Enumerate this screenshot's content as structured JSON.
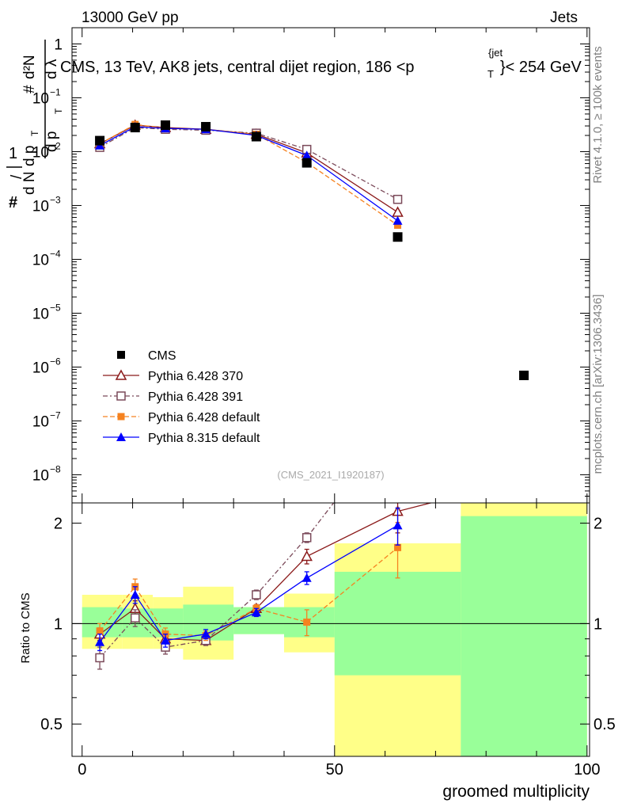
{
  "header": {
    "energy_label": "13000 GeV pp",
    "process_label": "Jets",
    "title": "CMS, 13 TeV, AK8 jets, central dijet region, 186 <p",
    "title_sup": "{jet",
    "title_sub": "T",
    "title_end": "}< 254 GeV",
    "right_label_top": "Rivet 4.1.0, ≥ 100k events",
    "right_label_bottom": "mcplots.cern.ch [arXiv:1306.3436]",
    "analysis_id": "(CMS_2021_I1920187)"
  },
  "colors": {
    "cms": "#000000",
    "p370": "#8b1a1a",
    "p391": "#7b4a5a",
    "p6def": "#f58220",
    "p8def": "#0000ff",
    "band_inner": "#99ff99",
    "band_outer": "#ffff88"
  },
  "chart_data": {
    "type": "line",
    "xlabel": "groomed multiplicity",
    "ylabel_main": "1/N dN/dp_T d²N/dp_T dλ",
    "ylabel_ratio": "Ratio to CMS",
    "xlim": [
      -2,
      100.5
    ],
    "ylim_main": [
      3e-09,
      2
    ],
    "ylim_ratio": [
      0.4,
      2.3
    ],
    "x_ticks": [
      0,
      50,
      100
    ],
    "main_ticks": [
      {
        "v": 1,
        "label": "1"
      },
      {
        "v": 0.1,
        "label": "10",
        "exp": "−1"
      },
      {
        "v": 0.01,
        "label": "10",
        "exp": "−2"
      },
      {
        "v": 0.001,
        "label": "10",
        "exp": "−3"
      },
      {
        "v": 0.0001,
        "label": "10",
        "exp": "−4"
      },
      {
        "v": 1e-05,
        "label": "10",
        "exp": "−5"
      },
      {
        "v": 1e-06,
        "label": "10",
        "exp": "−6"
      },
      {
        "v": 1e-07,
        "label": "10",
        "exp": "−7"
      },
      {
        "v": 1e-08,
        "label": "10",
        "exp": "−8"
      }
    ],
    "ratio_ticks": [
      {
        "v": 2,
        "label": "2"
      },
      {
        "v": 1,
        "label": "1"
      },
      {
        "v": 0.5,
        "label": "0.5"
      }
    ],
    "bins": [
      {
        "lo": 0,
        "hi": 8,
        "inner": [
          0.91,
          1.12
        ],
        "outer": [
          0.84,
          1.22
        ]
      },
      {
        "lo": 8,
        "hi": 14,
        "inner": [
          0.91,
          1.11
        ],
        "outer": [
          0.84,
          1.22
        ]
      },
      {
        "lo": 14,
        "hi": 20,
        "inner": [
          0.91,
          1.11
        ],
        "outer": [
          0.84,
          1.2
        ]
      },
      {
        "lo": 20,
        "hi": 30,
        "inner": [
          0.89,
          1.14
        ],
        "outer": [
          0.78,
          1.29
        ]
      },
      {
        "lo": 30,
        "hi": 40,
        "inner": [
          0.93,
          1.12
        ],
        "outer": [
          0.93,
          1.12
        ]
      },
      {
        "lo": 40,
        "hi": 50,
        "inner": [
          0.91,
          1.12
        ],
        "outer": [
          0.82,
          1.23
        ]
      },
      {
        "lo": 50,
        "hi": 75,
        "inner": [
          0.7,
          1.43
        ],
        "outer": [
          0.35,
          1.74
        ]
      },
      {
        "lo": 75,
        "hi": 100,
        "inner": [
          0.35,
          2.1
        ],
        "outer": [
          0.35,
          2.35
        ]
      }
    ],
    "legend": [
      {
        "key": "cms",
        "label": "CMS"
      },
      {
        "key": "p370",
        "label": "Pythia 6.428 370"
      },
      {
        "key": "p391",
        "label": "Pythia 6.428 391"
      },
      {
        "key": "p6def",
        "label": "Pythia 6.428 default"
      },
      {
        "key": "p8def",
        "label": "Pythia 8.315 default"
      }
    ],
    "cms": {
      "x": [
        3.5,
        10.5,
        16.5,
        24.5,
        34.5,
        44.5,
        62.5,
        87.5
      ],
      "y": [
        0.016,
        0.028,
        0.031,
        0.029,
        0.019,
        0.0062,
        0.00026,
        7e-07
      ]
    },
    "series": [
      {
        "key": "p370",
        "name": "Pythia 6.428 370",
        "marker": "triangle-open",
        "dash": "",
        "x": [
          3.5,
          10.5,
          16.5,
          24.5,
          34.5,
          44.5,
          62.5
        ],
        "y": [
          0.014,
          0.031,
          0.028,
          0.026,
          0.021,
          0.0095,
          0.00075
        ],
        "ratio_x": [
          3.5,
          10.5,
          16.5,
          24.5,
          34.5,
          44.5,
          62.5,
          70
        ],
        "ratio": [
          0.93,
          1.11,
          0.9,
          0.89,
          1.11,
          1.59,
          2.17,
          2.32
        ],
        "ratio_err": [
          0.04,
          0.06,
          0.04,
          0.03,
          0.03,
          0.08,
          0.3,
          0
        ]
      },
      {
        "key": "p391",
        "name": "Pythia 6.428 391",
        "marker": "square-open",
        "dash": "6,3,2,3",
        "x": [
          3.5,
          10.5,
          16.5,
          24.5,
          34.5,
          44.5,
          62.5
        ],
        "y": [
          0.012,
          0.028,
          0.026,
          0.025,
          0.022,
          0.011,
          0.0013
        ],
        "ratio_x": [
          3.5,
          10.5,
          16.5,
          24.5,
          34.5,
          44.5,
          50
        ],
        "ratio": [
          0.79,
          1.04,
          0.85,
          0.89,
          1.22,
          1.81,
          2.32
        ],
        "ratio_err": [
          0.06,
          0.06,
          0.04,
          0.03,
          0.04,
          0.06,
          0
        ]
      },
      {
        "key": "p6def",
        "name": "Pythia 6.428 default",
        "marker": "square-filled",
        "dash": "6,3",
        "x": [
          3.5,
          10.5,
          16.5,
          24.5,
          34.5,
          44.5,
          62.5
        ],
        "y": [
          0.014,
          0.032,
          0.027,
          0.026,
          0.021,
          0.0063,
          0.00043
        ],
        "ratio_x": [
          3.5,
          10.5,
          16.5,
          24.5,
          34.5,
          44.5,
          62.5
        ],
        "ratio": [
          0.95,
          1.29,
          0.93,
          0.92,
          1.11,
          1.01,
          1.69
        ],
        "ratio_err": [
          0.05,
          0.07,
          0.04,
          0.03,
          0.03,
          0.09,
          0.32
        ]
      },
      {
        "key": "p8def",
        "name": "Pythia 8.315 default",
        "marker": "triangle-filled",
        "dash": "",
        "x": [
          3.5,
          10.5,
          16.5,
          24.5,
          34.5,
          44.5,
          62.5
        ],
        "y": [
          0.013,
          0.029,
          0.027,
          0.026,
          0.02,
          0.0085,
          0.00052
        ],
        "ratio_x": [
          3.5,
          10.5,
          16.5,
          24.5,
          34.5,
          44.5,
          62.5
        ],
        "ratio": [
          0.88,
          1.22,
          0.89,
          0.93,
          1.08,
          1.37,
          1.97
        ],
        "ratio_err": [
          0.05,
          0.07,
          0.04,
          0.03,
          0.03,
          0.06,
          0.25
        ]
      }
    ]
  }
}
